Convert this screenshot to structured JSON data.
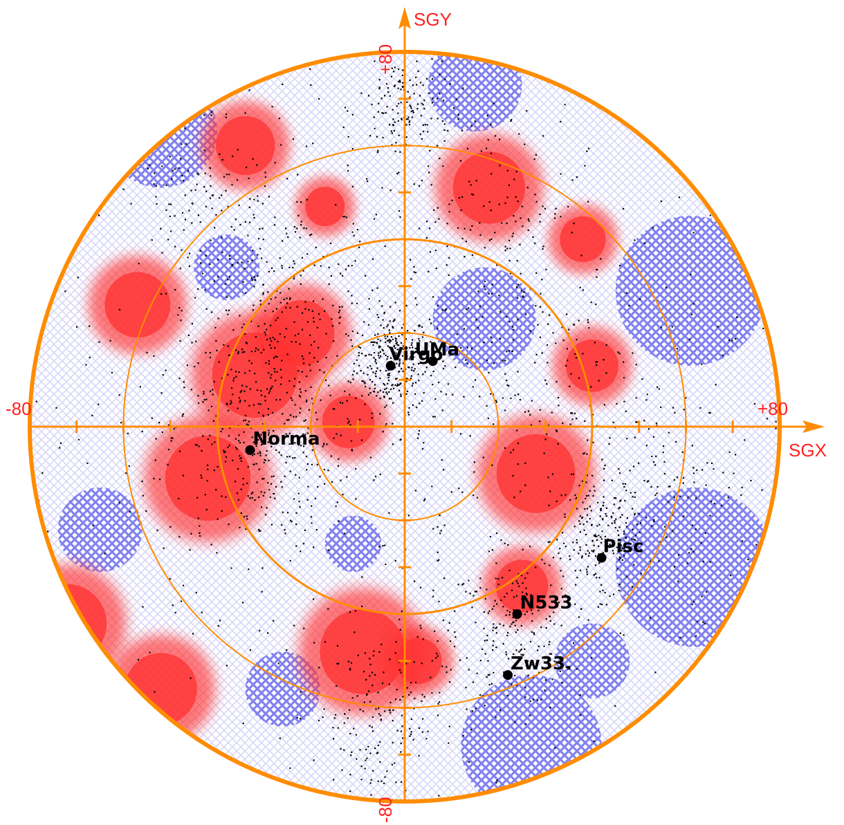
{
  "chart_data": {
    "type": "scatter",
    "projection": "polar sky map",
    "xlabel": "SGX",
    "ylabel": "SGY",
    "xlim": [
      -80,
      80
    ],
    "ylim": [
      -80,
      80
    ],
    "x_tick_labels": [
      "-80",
      "+80"
    ],
    "y_tick_labels": [
      "+80",
      "-80"
    ],
    "rings": [
      20,
      40,
      60,
      80
    ],
    "tick_step": 10,
    "colors": {
      "axis": "#ff8c00",
      "label": "#ff2020",
      "overdense": "#ff3030",
      "underdense": "#7777ee",
      "galaxies": "#000000"
    },
    "clusters": [
      {
        "name": "Virgo",
        "x": -3,
        "y": 13
      },
      {
        "name": "UMa",
        "x": 6,
        "y": 14
      },
      {
        "name": "Norma",
        "x": -33,
        "y": -5
      },
      {
        "name": "Pisc",
        "x": 42,
        "y": -28
      },
      {
        "name": "N533",
        "x": 24,
        "y": -40
      },
      {
        "name": "Zw33.",
        "x": 22,
        "y": -53
      }
    ],
    "overdense_regions": [
      {
        "x": 18,
        "y": 51,
        "r": 11
      },
      {
        "x": -32,
        "y": 11,
        "r": 13
      },
      {
        "x": -22,
        "y": 20,
        "r": 10
      },
      {
        "x": -42,
        "y": -11,
        "r": 13
      },
      {
        "x": -12,
        "y": 1,
        "r": 8
      },
      {
        "x": 28,
        "y": -10,
        "r": 12
      },
      {
        "x": -9,
        "y": -48,
        "r": 13
      },
      {
        "x": 3,
        "y": -50,
        "r": 7
      },
      {
        "x": -72,
        "y": -42,
        "r": 12
      },
      {
        "x": -52,
        "y": -56,
        "r": 11
      },
      {
        "x": -57,
        "y": 26,
        "r": 10
      },
      {
        "x": -34,
        "y": 60,
        "r": 9
      },
      {
        "x": 25,
        "y": -34,
        "r": 8
      },
      {
        "x": 38,
        "y": 40,
        "r": 7
      },
      {
        "x": 40,
        "y": 13,
        "r": 8
      },
      {
        "x": -17,
        "y": 47,
        "r": 6
      }
    ],
    "underdense_regions": [
      {
        "x": 61,
        "y": 29,
        "r": 16
      },
      {
        "x": 62,
        "y": -30,
        "r": 17
      },
      {
        "x": 27,
        "y": -68,
        "r": 15
      },
      {
        "x": -52,
        "y": 63,
        "r": 12
      },
      {
        "x": 15,
        "y": 73,
        "r": 10
      },
      {
        "x": 17,
        "y": 23,
        "r": 11
      },
      {
        "x": -65,
        "y": -22,
        "r": 9
      },
      {
        "x": -26,
        "y": -56,
        "r": 8
      },
      {
        "x": -38,
        "y": 34,
        "r": 7
      },
      {
        "x": 40,
        "y": -50,
        "r": 8
      },
      {
        "x": -11,
        "y": -25,
        "r": 6
      }
    ],
    "galaxy_concentrations": [
      {
        "x": -3,
        "y": 14,
        "spread": 4,
        "count": 260
      },
      {
        "x": 41,
        "y": -24,
        "spread": 5,
        "count": 180
      },
      {
        "x": 23,
        "y": -44,
        "spread": 6,
        "count": 170
      },
      {
        "x": -33,
        "y": -4,
        "spread": 9,
        "count": 260
      },
      {
        "x": -25,
        "y": 19,
        "spread": 12,
        "count": 360
      },
      {
        "x": 0,
        "y": 68,
        "spread": 5,
        "count": 150
      },
      {
        "x": -6,
        "y": -62,
        "spread": 7,
        "count": 170
      },
      {
        "x": 18,
        "y": 48,
        "spread": 8,
        "count": 110
      },
      {
        "x": 28,
        "y": 12,
        "spread": 12,
        "count": 160
      },
      {
        "x": -43,
        "y": 51,
        "spread": 8,
        "count": 110
      },
      {
        "x": 55,
        "y": -13,
        "spread": 8,
        "count": 110
      },
      {
        "x": 0,
        "y": 0,
        "spread": 45,
        "count": 700
      }
    ]
  }
}
